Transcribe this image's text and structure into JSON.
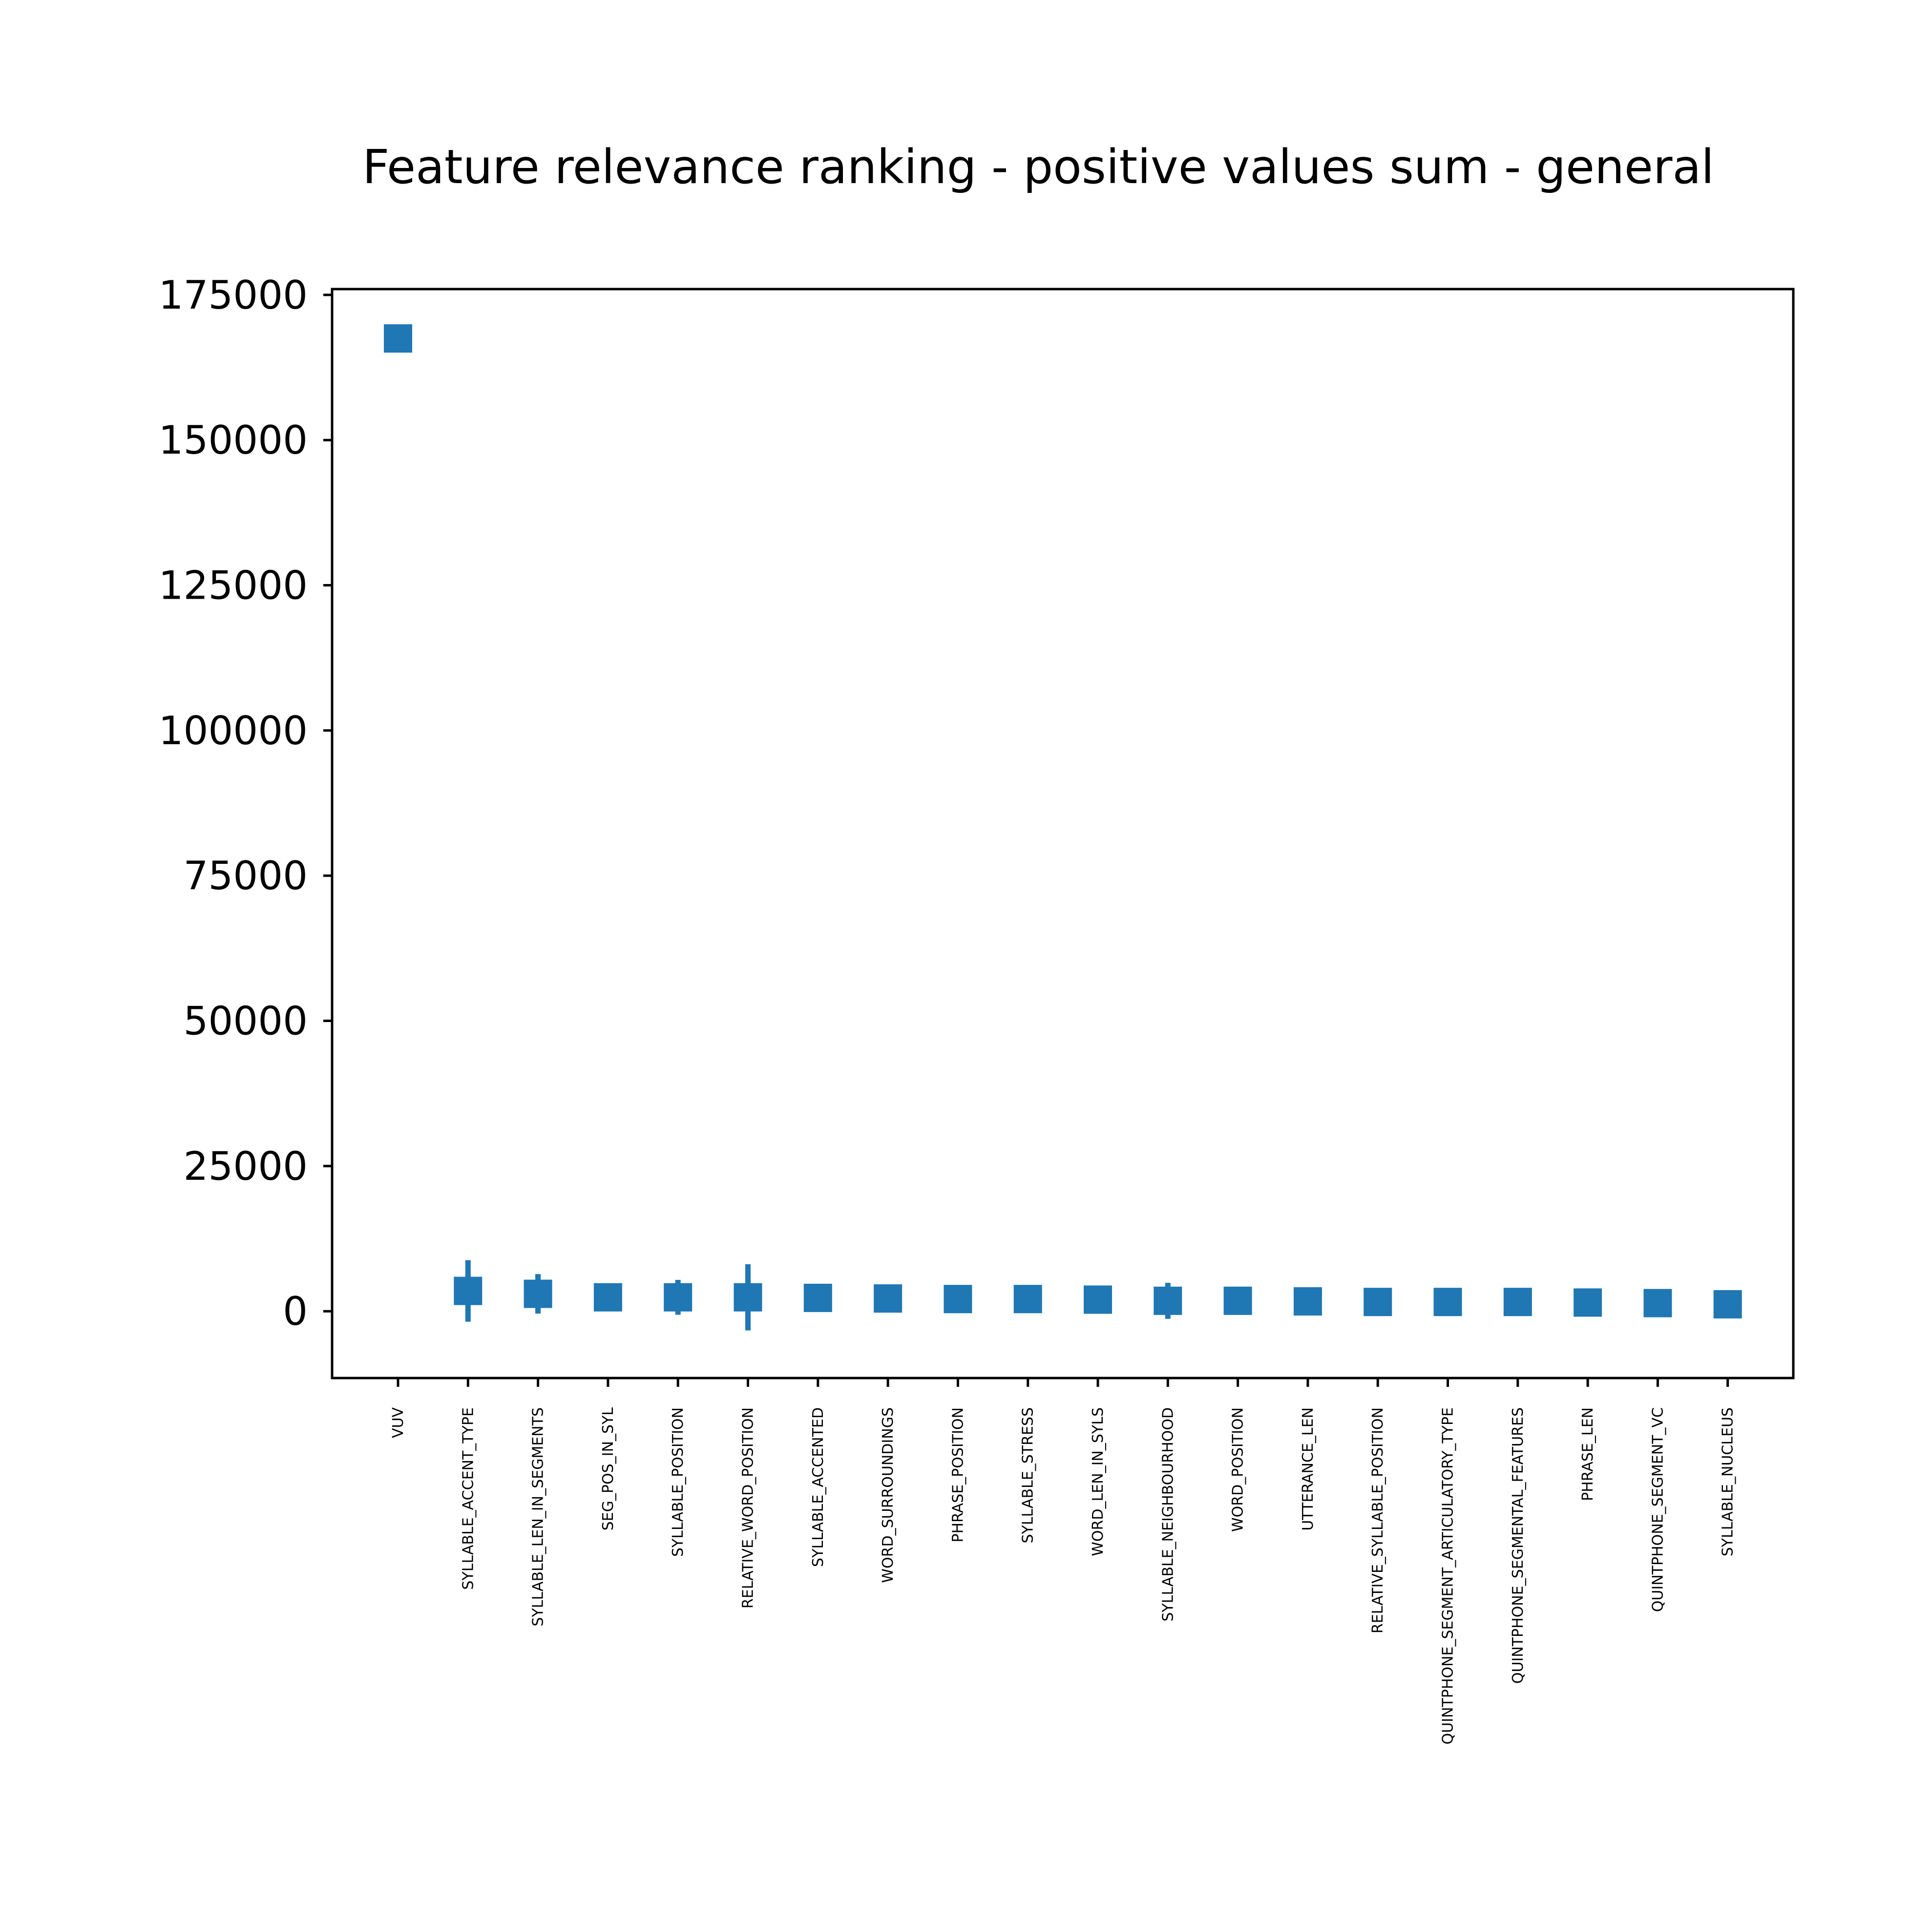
{
  "chart_data": {
    "type": "scatter",
    "title": "Feature relevance ranking - positive values sum - general",
    "xlabel": "",
    "ylabel": "",
    "ylim": [
      -11500,
      176000
    ],
    "yticks": [
      0,
      25000,
      50000,
      75000,
      100000,
      125000,
      150000,
      175000
    ],
    "ytick_labels": [
      "0",
      "25000",
      "50000",
      "75000",
      "100000",
      "125000",
      "150000",
      "175000"
    ],
    "grid": false,
    "marker": "square",
    "color": "#1f77b4",
    "categories": [
      "VUV",
      "SYLLABLE_ACCENT_TYPE",
      "SYLLABLE_LEN_IN_SEGMENTS",
      "SEG_POS_IN_SYL",
      "SYLLABLE_POSITION",
      "RELATIVE_WORD_POSITION",
      "SYLLABLE_ACCENTED",
      "WORD_SURROUNDINGS",
      "PHRASE_POSITION",
      "SYLLABLE_STRESS",
      "WORD_LEN_IN_SYLS",
      "SYLLABLE_NEIGHBOURHOOD",
      "WORD_POSITION",
      "UTTERANCE_LEN",
      "RELATIVE_SYLLABLE_POSITION",
      "QUINTPHONE_SEGMENT_ARTICULATORY_TYPE",
      "QUINTPHONE_SEGMENTAL_FEATURES",
      "PHRASE_LEN",
      "QUINTPHONE_SEGMENT_VC",
      "SYLLABLE_NUCLEUS"
    ],
    "values": [
      167500,
      3500,
      3000,
      2400,
      2400,
      2400,
      2300,
      2200,
      2100,
      2100,
      2000,
      1800,
      1800,
      1700,
      1600,
      1600,
      1600,
      1500,
      1400,
      1200
    ],
    "errors": [
      0,
      5300,
      3400,
      2400,
      3000,
      5700,
      2100,
      0,
      0,
      0,
      0,
      3100,
      0,
      2000,
      0,
      0,
      0,
      0,
      0,
      0
    ]
  }
}
